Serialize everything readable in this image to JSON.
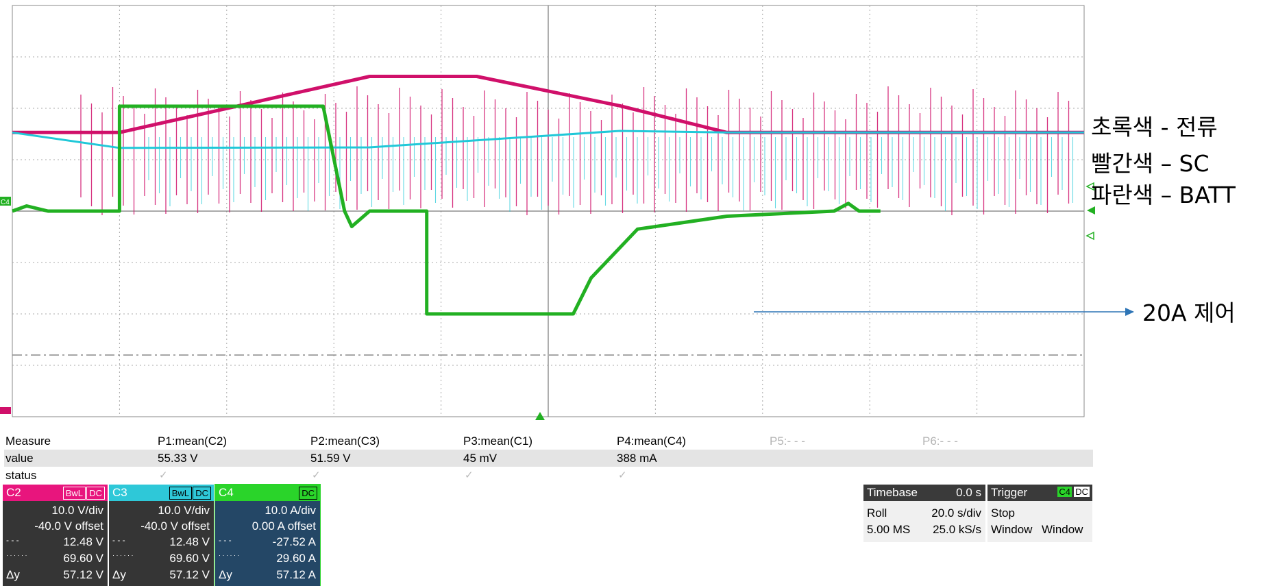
{
  "annotations": {
    "legend_green": "초록색 - 전류",
    "legend_red": "빨간색 – SC",
    "legend_blue": "파란색 – BATT",
    "control_note": "20A 제어"
  },
  "scope": {
    "ch4_marker": "C4",
    "colors": {
      "c2": "#d0106a",
      "c3": "#20c8d8",
      "c4": "#22b022",
      "grid": "#8a8a8a"
    },
    "traces": {
      "c2_sc_voltage": [
        [
          0,
          55.3
        ],
        [
          3,
          55.3
        ],
        [
          10,
          66.2
        ],
        [
          10.5,
          66.2
        ],
        [
          13,
          66.2
        ],
        [
          17,
          60.5
        ],
        [
          20,
          55.3
        ],
        [
          30,
          55.3
        ]
      ],
      "c3_batt_voltage": [
        [
          0,
          55.3
        ],
        [
          3,
          52.3
        ],
        [
          10,
          52.4
        ],
        [
          17,
          55.6
        ],
        [
          20,
          55.3
        ],
        [
          30,
          55.3
        ]
      ],
      "c4_current": [
        [
          0,
          0
        ],
        [
          0.4,
          1
        ],
        [
          1,
          0
        ],
        [
          3,
          0
        ],
        [
          3,
          20.4
        ],
        [
          8.7,
          20.4
        ],
        [
          9.3,
          0
        ],
        [
          9.5,
          -3
        ],
        [
          10,
          0
        ],
        [
          11.6,
          0
        ],
        [
          11.6,
          -20
        ],
        [
          15.7,
          -20
        ],
        [
          16.2,
          -13
        ],
        [
          17.5,
          -3.5
        ],
        [
          20,
          -1
        ],
        [
          23,
          0
        ],
        [
          23.4,
          1.5
        ],
        [
          23.7,
          0
        ],
        [
          24.3,
          0
        ]
      ]
    }
  },
  "measure": {
    "headers": [
      "Measure",
      "P1:mean(C2)",
      "P2:mean(C3)",
      "P3:mean(C1)",
      "P4:mean(C4)",
      "P5:- - -",
      "P6:- - -"
    ],
    "value_row": [
      "value",
      "55.33 V",
      "51.59 V",
      "45 mV",
      "388 mA",
      "",
      ""
    ],
    "status_label": "status",
    "status_mark": "✓"
  },
  "channels": [
    {
      "name": "C2",
      "badge1": "BwL",
      "badge2": "DC",
      "vdiv": "10.0 V/div",
      "offset": "-40.0 V offset",
      "cursor1_mark": "- - -",
      "cursor1": "12.48 V",
      "cursor2_mark": "· · · · · ·",
      "cursor2": "69.60 V",
      "dy_label": "Δy",
      "dy": "57.12 V",
      "color": "#e8157d"
    },
    {
      "name": "C3",
      "badge1": "BwL",
      "badge2": "DC",
      "vdiv": "10.0 V/div",
      "offset": "-40.0 V offset",
      "cursor1_mark": "- - -",
      "cursor1": "12.48 V",
      "cursor2_mark": "· · · · · ·",
      "cursor2": "69.60 V",
      "dy_label": "Δy",
      "dy": "57.12 V",
      "color": "#2ec8d8"
    },
    {
      "name": "C4",
      "badge1": "",
      "badge2": "DC",
      "vdiv": "10.0 A/div",
      "offset": "0.00 A offset",
      "cursor1_mark": "- - -",
      "cursor1": "-27.52 A",
      "cursor2_mark": "· · · · · ·",
      "cursor2": "29.60 A",
      "dy_label": "Δy",
      "dy": "57.12 A",
      "color": "#2ad42a"
    }
  ],
  "timebase": {
    "label": "Timebase",
    "delay": "0.0 s",
    "mode": "Roll",
    "tdiv": "20.0 s/div",
    "memory": "5.00 MS",
    "rate": "25.0 kS/s"
  },
  "trigger": {
    "label": "Trigger",
    "source": "C4",
    "coupling": "DC",
    "state": "Stop",
    "window1": "Window",
    "window2": "Window"
  }
}
